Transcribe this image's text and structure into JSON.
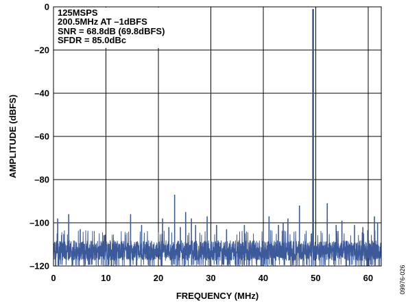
{
  "chart_data": {
    "type": "line",
    "xlabel": "FREQUENCY (MHz)",
    "ylabel": "AMPLITUDE (dBFS)",
    "xlim": [
      0,
      62.5
    ],
    "ylim": [
      -120,
      0
    ],
    "grid": true,
    "x_ticks": [
      {
        "value": 0,
        "label": "0"
      },
      {
        "value": 10,
        "label": "10"
      },
      {
        "value": 20,
        "label": "20"
      },
      {
        "value": 30,
        "label": "30"
      },
      {
        "value": 40,
        "label": "40"
      },
      {
        "value": 50,
        "label": "50"
      },
      {
        "value": 60,
        "label": "60"
      }
    ],
    "y_ticks": [
      {
        "value": 0,
        "label": "0"
      },
      {
        "value": -20,
        "label": "–20"
      },
      {
        "value": -40,
        "label": "–40"
      },
      {
        "value": -60,
        "label": "–60"
      },
      {
        "value": -80,
        "label": "–80"
      },
      {
        "value": -100,
        "label": "–100"
      },
      {
        "value": -120,
        "label": "–120"
      }
    ],
    "annotation_lines": [
      "125MSPS",
      "200.5MHz AT –1dBFS",
      "SNR = 68.8dB (69.8dBFS)",
      "SFDR = 85.0dBc"
    ],
    "color": "#3c5a9a",
    "fundamental": {
      "x": 49.5,
      "y": -1
    },
    "spurs": [
      {
        "x": 0.8,
        "y": -98
      },
      {
        "x": 2.9,
        "y": -96
      },
      {
        "x": 5.1,
        "y": -103
      },
      {
        "x": 14.7,
        "y": -96
      },
      {
        "x": 16.8,
        "y": -101
      },
      {
        "x": 20.8,
        "y": -98
      },
      {
        "x": 22.0,
        "y": -102
      },
      {
        "x": 23.1,
        "y": -87
      },
      {
        "x": 24.2,
        "y": -102
      },
      {
        "x": 25.2,
        "y": -95
      },
      {
        "x": 26.3,
        "y": -98
      },
      {
        "x": 27.1,
        "y": -101
      },
      {
        "x": 29.3,
        "y": -97
      },
      {
        "x": 31.1,
        "y": -101
      },
      {
        "x": 33.0,
        "y": -103
      },
      {
        "x": 36.4,
        "y": -101
      },
      {
        "x": 41.1,
        "y": -97
      },
      {
        "x": 42.9,
        "y": -101
      },
      {
        "x": 43.8,
        "y": -100
      },
      {
        "x": 44.7,
        "y": -98
      },
      {
        "x": 46.9,
        "y": -92
      },
      {
        "x": 52.2,
        "y": -91
      },
      {
        "x": 53.9,
        "y": -101
      },
      {
        "x": 55.0,
        "y": -99
      },
      {
        "x": 57.4,
        "y": -101
      },
      {
        "x": 59.0,
        "y": -102
      },
      {
        "x": 61.2,
        "y": -97
      },
      {
        "x": 61.8,
        "y": -100
      }
    ],
    "noise_floor": [
      -120,
      -106
    ]
  },
  "figure_code": "09976-026"
}
